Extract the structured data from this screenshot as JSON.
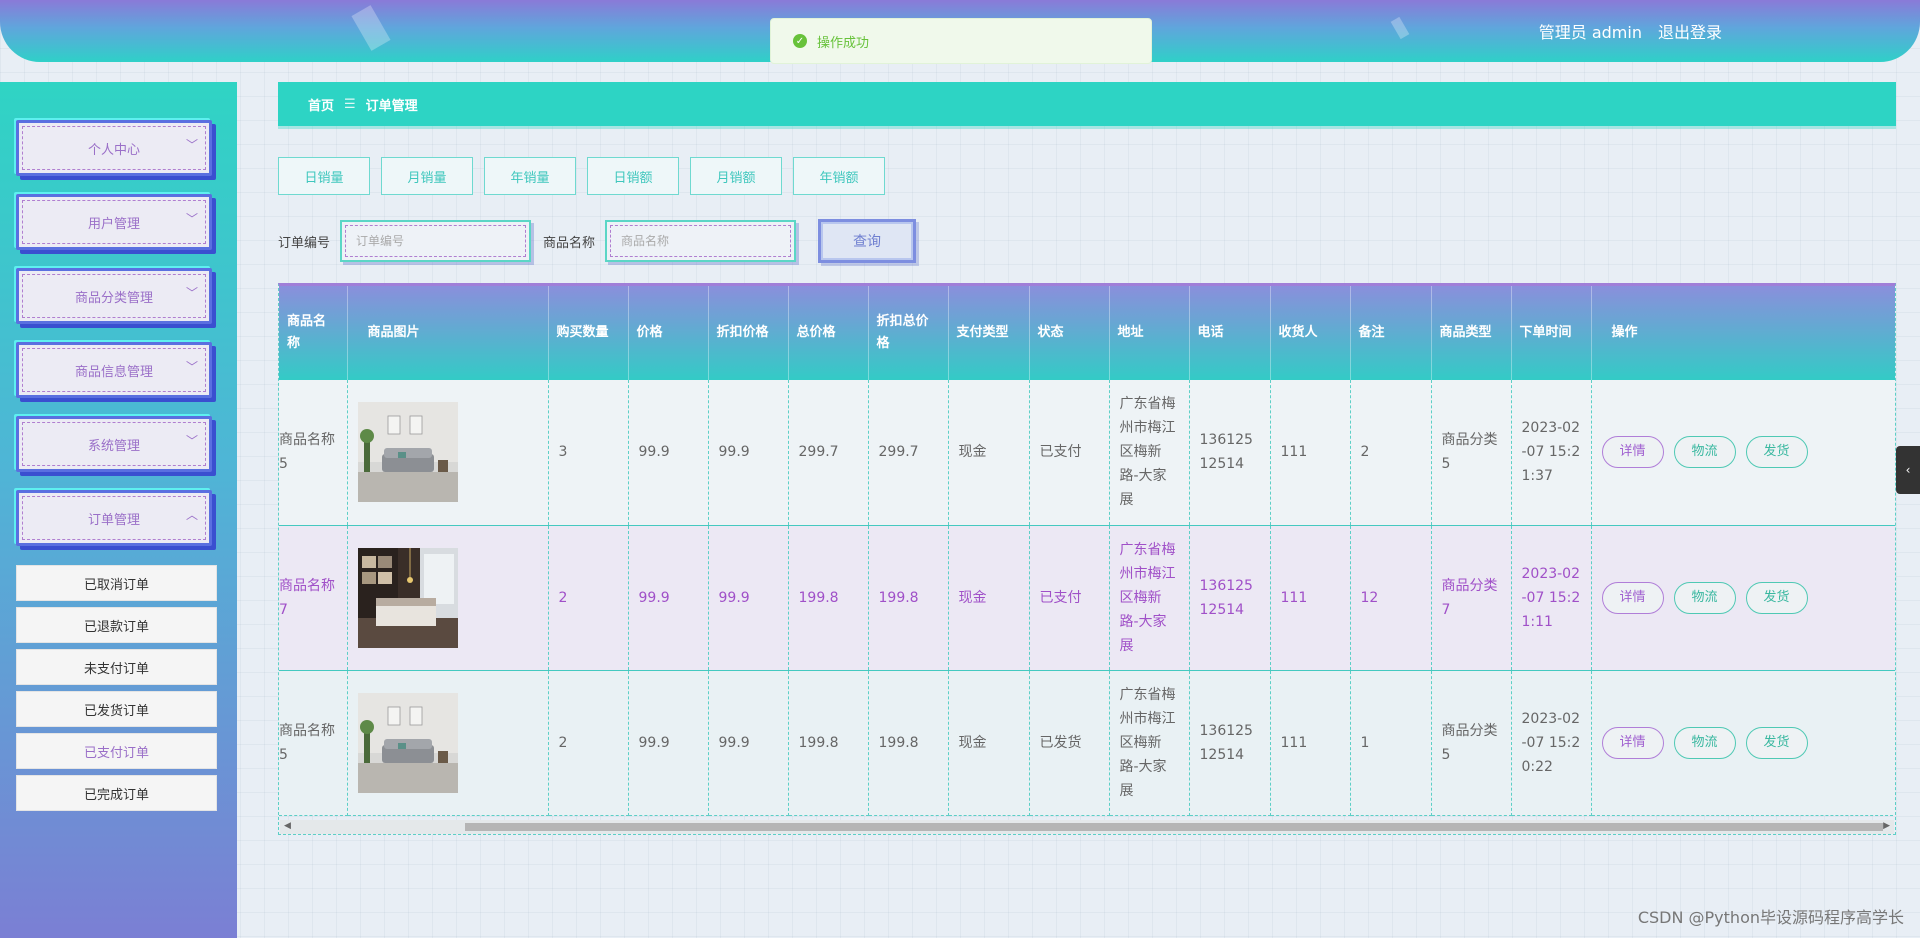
{
  "header": {
    "user_label": "管理员 admin",
    "logout_label": "退出登录",
    "toast_text": "操作成功"
  },
  "colors": {
    "accent": "#2dd4c4",
    "purple": "#a050c8",
    "toast_green": "#67c23a"
  },
  "sidebar": {
    "menus": [
      {
        "label": "个人中心",
        "expanded": false
      },
      {
        "label": "用户管理",
        "expanded": false
      },
      {
        "label": "商品分类管理",
        "expanded": false
      },
      {
        "label": "商品信息管理",
        "expanded": false
      },
      {
        "label": "系统管理",
        "expanded": false
      },
      {
        "label": "订单管理",
        "expanded": true
      }
    ],
    "submenu": [
      "已取消订单",
      "已退款订单",
      "未支付订单",
      "已发货订单",
      "已支付订单",
      "已完成订单"
    ],
    "active_submenu": "已支付订单"
  },
  "breadcrumb": {
    "home": "首页",
    "separator": "☰",
    "current": "订单管理"
  },
  "stat_buttons": [
    "日销量",
    "月销量",
    "年销量",
    "日销额",
    "月销额",
    "年销额"
  ],
  "search": {
    "order_label": "订单编号",
    "order_placeholder": "订单编号",
    "product_label": "商品名称",
    "product_placeholder": "商品名称",
    "query_label": "查询"
  },
  "table": {
    "headers": [
      "商品名称",
      "商品图片",
      "购买数量",
      "价格",
      "折扣价格",
      "总价格",
      "折扣总价格",
      "支付类型",
      "状态",
      "地址",
      "电话",
      "收货人",
      "备注",
      "商品类型",
      "下单时间",
      "操作"
    ],
    "rows": [
      {
        "name": "商品名称5",
        "image": "room-gray-sofa",
        "qty": "3",
        "price": "99.9",
        "disc_price": "99.9",
        "total": "299.7",
        "disc_total": "299.7",
        "pay": "现金",
        "status": "已支付",
        "address": "广东省梅州市梅江区梅新路-大家展",
        "phone": "13612512514",
        "receiver": "111",
        "note": "2",
        "type": "商品分类5",
        "time": "2023-02-07 15:21:37"
      },
      {
        "name": "商品名称7",
        "image": "bedroom-dark",
        "qty": "2",
        "price": "99.9",
        "disc_price": "99.9",
        "total": "199.8",
        "disc_total": "199.8",
        "pay": "现金",
        "status": "已支付",
        "address": "广东省梅州市梅江区梅新路-大家展",
        "phone": "13612512514",
        "receiver": "111",
        "note": "12",
        "type": "商品分类7",
        "time": "2023-02-07 15:21:11"
      },
      {
        "name": "商品名称5",
        "image": "room-gray-sofa",
        "qty": "2",
        "price": "99.9",
        "disc_price": "99.9",
        "total": "199.8",
        "disc_total": "199.8",
        "pay": "现金",
        "status": "已发货",
        "address": "广东省梅州市梅江区梅新路-大家展",
        "phone": "13612512514",
        "receiver": "111",
        "note": "1",
        "type": "商品分类5",
        "time": "2023-02-07 15:20:22"
      }
    ],
    "actions": {
      "detail": "详情",
      "logistics": "物流",
      "ship": "发货"
    }
  },
  "watermark": "CSDN @Python毕设源码程序高学长"
}
